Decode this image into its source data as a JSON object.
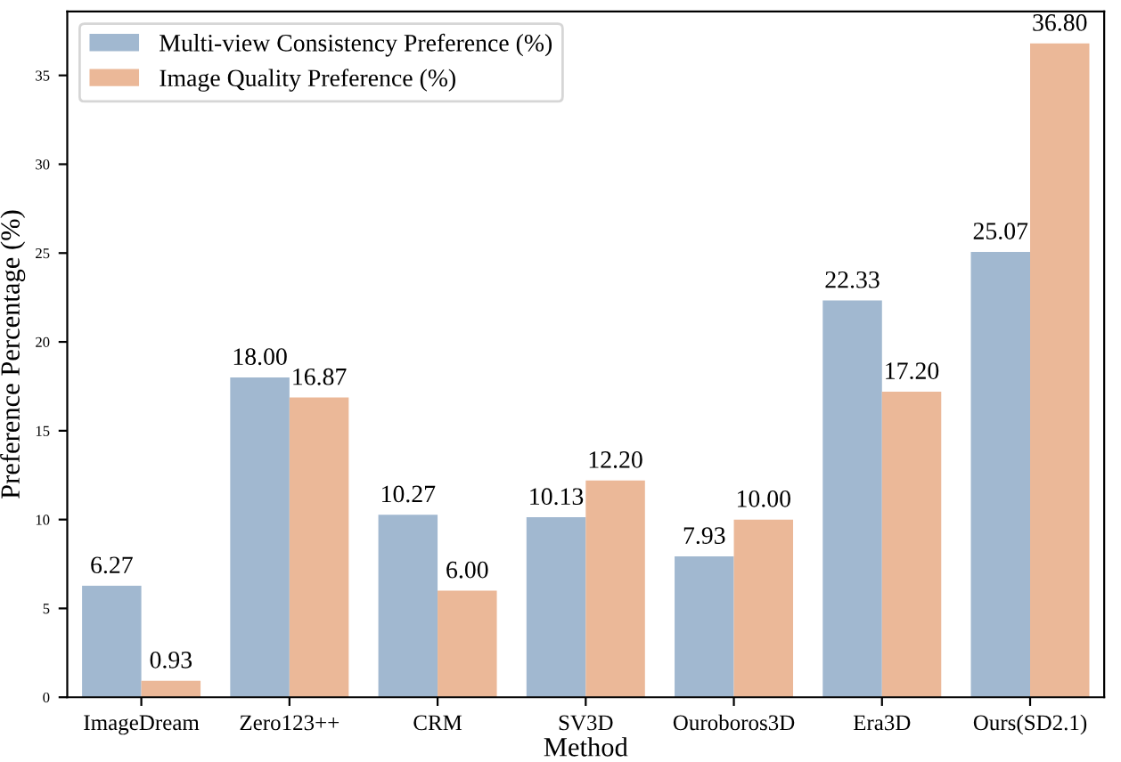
{
  "chart_data": {
    "type": "bar",
    "xlabel": "Method",
    "ylabel": "Preference Percentage (%)",
    "categories": [
      "ImageDream",
      "Zero123++",
      "CRM",
      "SV3D",
      "Ouroboros3D",
      "Era3D",
      "Ours(SD2.1)"
    ],
    "series": [
      {
        "name": "Multi-view Consistency Preference (%)",
        "color": "#a1b8d0",
        "values": [
          6.27,
          18.0,
          10.27,
          10.13,
          7.93,
          22.33,
          25.07
        ],
        "value_labels": [
          "6.27",
          "18.00",
          "10.27",
          "10.13",
          "7.93",
          "22.33",
          "25.07"
        ]
      },
      {
        "name": "Image Quality Preference (%)",
        "color": "#ebb898",
        "values": [
          0.93,
          16.87,
          6.0,
          12.2,
          10.0,
          17.2,
          36.8
        ],
        "value_labels": [
          "0.93",
          "16.87",
          "6.00",
          "12.20",
          "10.00",
          "17.20",
          "36.80"
        ]
      }
    ],
    "ylim": [
      0,
      38.6
    ],
    "yticks": [
      0,
      5,
      10,
      15,
      20,
      25,
      30,
      35
    ],
    "grid": false,
    "legend": "top left"
  }
}
